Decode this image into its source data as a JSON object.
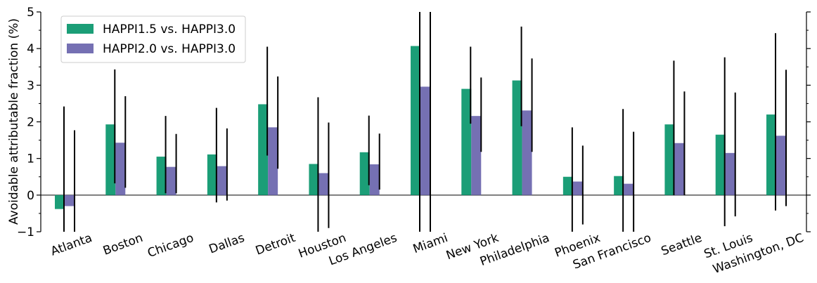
{
  "chart_data": {
    "type": "bar",
    "ylabel": "Avoidable attributable fraction (%)",
    "ylim": [
      -1,
      5
    ],
    "yticks": [
      -1,
      0,
      1,
      2,
      3,
      4,
      5
    ],
    "ytick_labels": [
      "−1",
      "0",
      "1",
      "2",
      "3",
      "4",
      "5"
    ],
    "legend_position": "top-left",
    "categories": [
      "Atlanta",
      "Boston",
      "Chicago",
      "Dallas",
      "Detroit",
      "Houston",
      "Los Angeles",
      "Miami",
      "New York",
      "Philadelphia",
      "Phoenix",
      "San Francisco",
      "Seattle",
      "St. Louis",
      "Washington, DC"
    ],
    "series": [
      {
        "name": "HAPPI1.5 vs. HAPPI3.0",
        "color": "#1b9e77",
        "values": [
          -0.38,
          1.93,
          1.05,
          1.11,
          2.48,
          0.85,
          1.17,
          4.07,
          2.9,
          3.13,
          0.5,
          0.52,
          1.93,
          1.65,
          2.2
        ],
        "err_low": [
          -1.0,
          0.32,
          0.05,
          -0.2,
          1.08,
          -1.0,
          0.27,
          -1.0,
          1.95,
          1.88,
          -1.0,
          -1.0,
          0.0,
          -0.85,
          -0.42
        ],
        "err_high": [
          2.42,
          3.43,
          2.16,
          2.38,
          4.05,
          2.67,
          2.17,
          5.0,
          4.05,
          4.6,
          1.85,
          2.35,
          3.67,
          3.76,
          4.42
        ]
      },
      {
        "name": "HAPPI2.0 vs. HAPPI3.0",
        "color": "#7570b3",
        "values": [
          -0.3,
          1.43,
          0.77,
          0.79,
          1.85,
          0.6,
          0.84,
          2.96,
          2.16,
          2.31,
          0.37,
          0.31,
          1.42,
          1.15,
          1.62
        ],
        "err_low": [
          -1.0,
          0.2,
          0.05,
          -0.15,
          0.72,
          -0.9,
          0.15,
          -1.0,
          1.18,
          1.18,
          -0.8,
          -1.0,
          0.0,
          -0.58,
          -0.3
        ],
        "err_high": [
          1.77,
          2.7,
          1.67,
          1.82,
          3.24,
          1.98,
          1.68,
          5.0,
          3.21,
          3.73,
          1.35,
          1.73,
          2.83,
          2.8,
          3.42
        ]
      }
    ]
  }
}
